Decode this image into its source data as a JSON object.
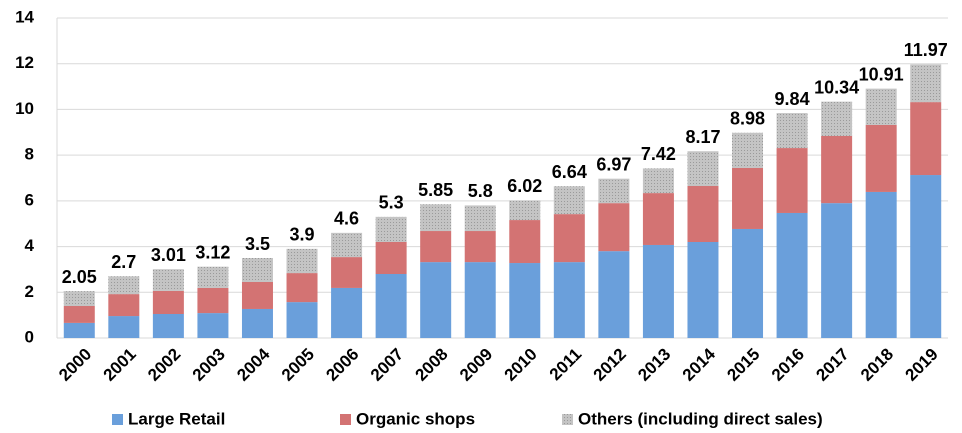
{
  "chart_data": {
    "type": "bar",
    "stacked": true,
    "categories": [
      "2000",
      "2001",
      "2002",
      "2003",
      "2004",
      "2005",
      "2006",
      "2007",
      "2008",
      "2009",
      "2010",
      "2011",
      "2012",
      "2013",
      "2014",
      "2015",
      "2016",
      "2017",
      "2018",
      "2019"
    ],
    "series": [
      {
        "name": "Large Retail",
        "color": "#6a9fdb",
        "values": [
          0.66,
          0.96,
          1.05,
          1.09,
          1.27,
          1.57,
          2.19,
          2.8,
          3.32,
          3.32,
          3.28,
          3.32,
          3.8,
          4.07,
          4.2,
          4.77,
          5.47,
          5.9,
          6.39,
          7.13
        ]
      },
      {
        "name": "Organic shops",
        "color": "#d37373",
        "values": [
          0.74,
          0.96,
          1.01,
          1.1,
          1.18,
          1.27,
          1.35,
          1.4,
          1.36,
          1.36,
          1.88,
          2.1,
          2.1,
          2.27,
          2.45,
          2.67,
          2.84,
          2.94,
          2.93,
          3.19
        ]
      },
      {
        "name": "Others (including direct sales)",
        "color": "#c4c4c4",
        "values": [
          0.65,
          0.78,
          0.95,
          0.93,
          1.05,
          1.06,
          1.06,
          1.1,
          1.17,
          1.12,
          0.86,
          1.22,
          1.07,
          1.08,
          1.52,
          1.54,
          1.53,
          1.5,
          1.59,
          1.65
        ]
      }
    ],
    "totals": [
      2.05,
      2.7,
      3.01,
      3.12,
      3.5,
      3.9,
      4.6,
      5.3,
      5.85,
      5.8,
      6.02,
      6.64,
      6.97,
      7.42,
      8.17,
      8.98,
      9.84,
      10.34,
      10.91,
      11.97
    ],
    "ylim": [
      0,
      14
    ],
    "yticks": [
      0,
      2,
      4,
      6,
      8,
      10,
      12,
      14
    ],
    "grid": true,
    "legend": "bottom"
  }
}
